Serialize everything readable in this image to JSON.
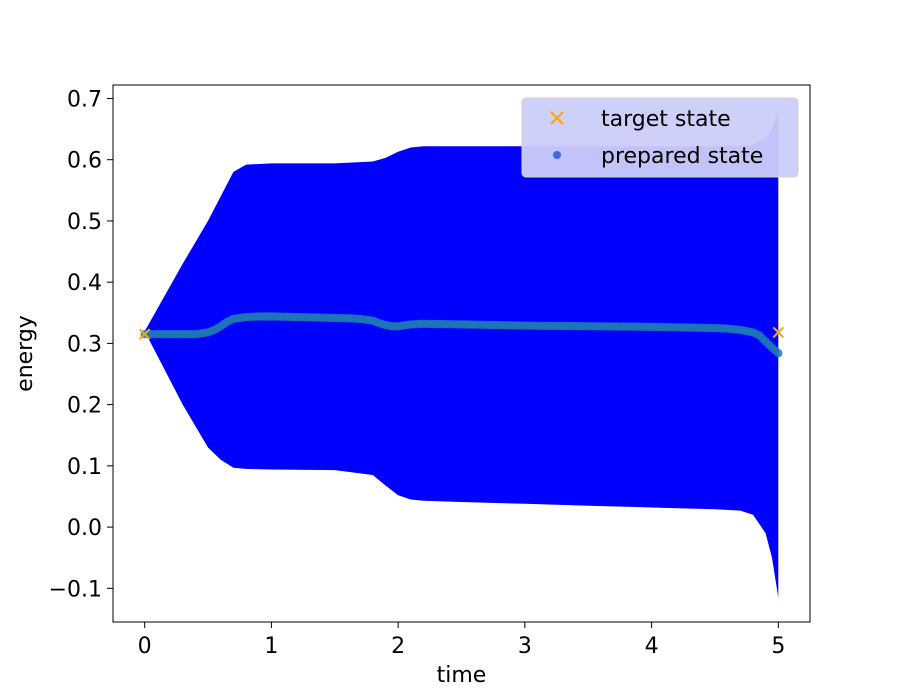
{
  "chart_data": {
    "type": "scatter",
    "title": "",
    "xlabel": "time",
    "ylabel": "energy",
    "xlim": [
      -0.25,
      5.25
    ],
    "ylim": [
      -0.155,
      0.722
    ],
    "grid": false,
    "x_ticks": [
      0,
      1,
      2,
      3,
      4,
      5
    ],
    "x_tick_labels": [
      "0",
      "1",
      "2",
      "3",
      "4",
      "5"
    ],
    "y_ticks": [
      -0.1,
      0.0,
      0.1,
      0.2,
      0.3,
      0.4,
      0.5,
      0.6,
      0.7
    ],
    "y_tick_labels": [
      "−0.1",
      "0.0",
      "0.1",
      "0.2",
      "0.3",
      "0.4",
      "0.5",
      "0.6",
      "0.7"
    ],
    "legend": {
      "placement": "upper right",
      "entries": [
        {
          "label": "target state",
          "marker": "x",
          "color": "#ffa500"
        },
        {
          "label": "prepared state",
          "marker": "circle",
          "color": "#4169e1"
        }
      ]
    },
    "colors": {
      "band": "#0000ff",
      "prepared_marker": "#1f77b4",
      "target_marker": "#ffa500",
      "legend_background": "#cccdf9"
    },
    "band": {
      "x": [
        0.0,
        0.3,
        0.5,
        0.6,
        0.7,
        0.8,
        1.0,
        1.5,
        1.8,
        1.9,
        2.0,
        2.1,
        2.2,
        2.5,
        3.0,
        3.5,
        4.0,
        4.5,
        4.7,
        4.8,
        4.9,
        4.95,
        5.0
      ],
      "upper": [
        0.32,
        0.43,
        0.5,
        0.54,
        0.58,
        0.592,
        0.594,
        0.594,
        0.597,
        0.603,
        0.613,
        0.62,
        0.622,
        0.622,
        0.622,
        0.622,
        0.622,
        0.622,
        0.622,
        0.625,
        0.635,
        0.65,
        0.68
      ],
      "lower": [
        0.32,
        0.2,
        0.13,
        0.11,
        0.097,
        0.095,
        0.094,
        0.093,
        0.085,
        0.068,
        0.052,
        0.045,
        0.043,
        0.041,
        0.038,
        0.035,
        0.032,
        0.029,
        0.027,
        0.02,
        -0.01,
        -0.05,
        -0.115
      ]
    },
    "series": [
      {
        "name": "target state",
        "marker": "x",
        "x": [
          0.0,
          5.0
        ],
        "y": [
          0.315,
          0.318
        ]
      },
      {
        "name": "prepared state",
        "marker": "circle",
        "x": [
          0.0,
          0.2,
          0.4,
          0.5,
          0.55,
          0.6,
          0.65,
          0.7,
          0.8,
          0.9,
          1.0,
          1.2,
          1.4,
          1.6,
          1.7,
          1.8,
          1.85,
          1.9,
          1.95,
          2.0,
          2.1,
          2.2,
          2.5,
          3.0,
          3.5,
          4.0,
          4.5,
          4.6,
          4.7,
          4.8,
          4.85,
          4.9,
          4.95,
          5.0
        ],
        "y": [
          0.315,
          0.315,
          0.315,
          0.318,
          0.322,
          0.328,
          0.335,
          0.34,
          0.343,
          0.344,
          0.344,
          0.343,
          0.342,
          0.341,
          0.34,
          0.337,
          0.333,
          0.33,
          0.328,
          0.328,
          0.331,
          0.332,
          0.331,
          0.329,
          0.328,
          0.327,
          0.325,
          0.324,
          0.322,
          0.318,
          0.313,
          0.303,
          0.293,
          0.284
        ]
      }
    ]
  }
}
